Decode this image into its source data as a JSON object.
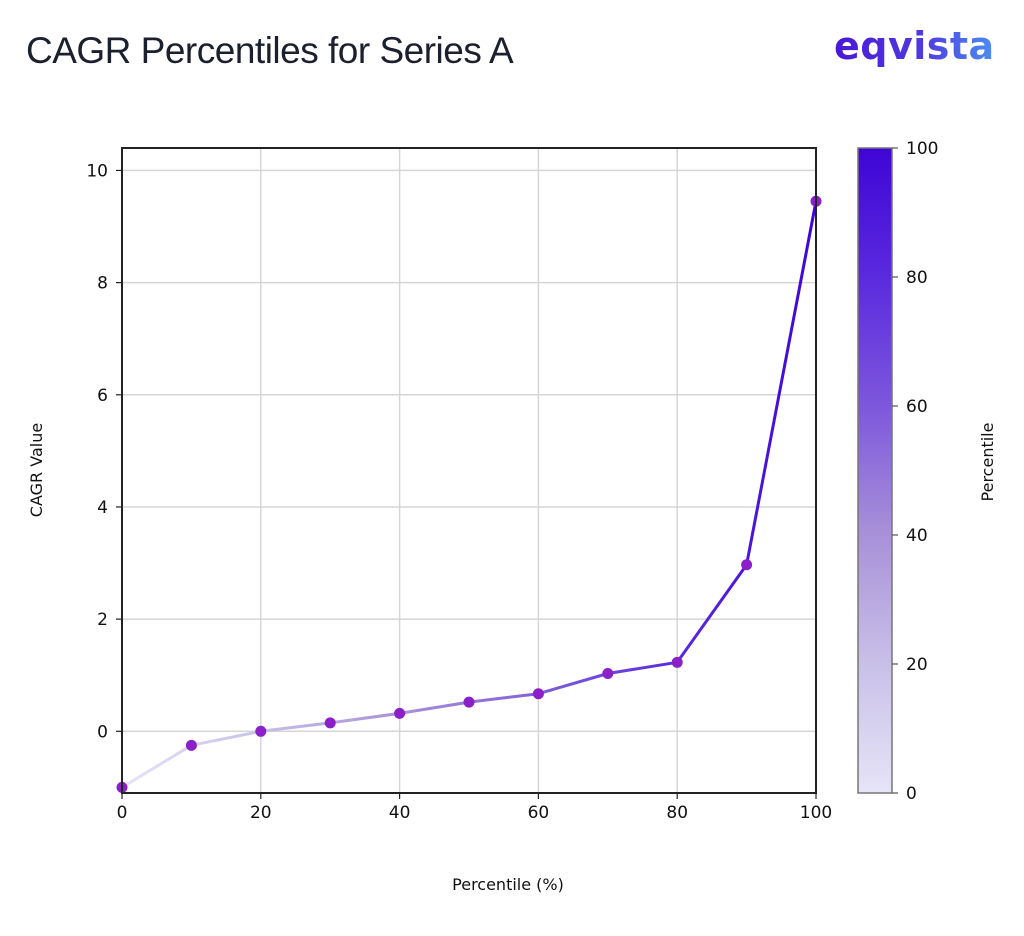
{
  "header": {
    "title": "CAGR Percentiles for Series A",
    "logo_text": "eqvista"
  },
  "colors": {
    "title": "#1b1f2e",
    "logo_start": "#4a18d6",
    "logo_end": "#4c8ff2",
    "marker": "#8b1fc8",
    "line_low": "#e6e4f7",
    "line_high": "#3f05d6",
    "grid": "#d6d6d6",
    "axis": "#222222"
  },
  "chart_data": {
    "type": "line",
    "title": "CAGR Percentiles for Series A",
    "xlabel": "Percentile (%)",
    "ylabel": "CAGR Value",
    "x": [
      0,
      10,
      20,
      30,
      40,
      50,
      60,
      70,
      80,
      90,
      100
    ],
    "series": [
      {
        "name": "CAGR Value",
        "values": [
          -1.0,
          -0.25,
          0.0,
          0.15,
          0.32,
          0.52,
          0.67,
          1.03,
          1.23,
          2.97,
          9.45
        ]
      }
    ],
    "xlim": [
      0,
      100
    ],
    "ylim": [
      -1.1,
      10.4
    ],
    "xticks": [
      0,
      20,
      40,
      60,
      80,
      100
    ],
    "yticks": [
      0,
      2,
      4,
      6,
      8,
      10
    ],
    "grid": true,
    "colorbar": {
      "label": "Percentile",
      "ticks": [
        0,
        20,
        40,
        60,
        80,
        100
      ],
      "range": [
        0,
        100
      ],
      "color_low": "#e6e4f7",
      "color_high": "#3f05d6"
    },
    "legend": "none"
  }
}
